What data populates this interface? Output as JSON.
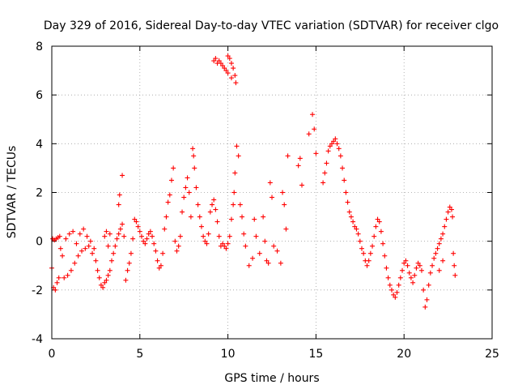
{
  "chart_data": {
    "type": "scatter",
    "title": "Day 329 of 2016, Sidereal Day-to-day VTEC variation (SDTVAR) for receiver clgo",
    "xlabel": "GPS time / hours",
    "ylabel": "SDTVAR / TECUs",
    "xlim": [
      0,
      25
    ],
    "ylim": [
      -4,
      8
    ],
    "xticks": [
      0,
      5,
      10,
      15,
      20,
      25
    ],
    "yticks": [
      -4,
      -2,
      0,
      2,
      4,
      6,
      8
    ],
    "grid": true,
    "marker": "+",
    "color": "#ff0000",
    "series": [
      {
        "name": "SDTVAR",
        "points": [
          [
            0.0,
            -1.1
          ],
          [
            0.05,
            0.1
          ],
          [
            0.1,
            -1.9
          ],
          [
            0.15,
            0.05
          ],
          [
            0.2,
            -2.0
          ],
          [
            0.25,
            0.1
          ],
          [
            0.3,
            -1.7
          ],
          [
            0.35,
            0.15
          ],
          [
            0.4,
            -1.5
          ],
          [
            0.45,
            0.2
          ],
          [
            0.5,
            -0.3
          ],
          [
            0.6,
            -0.6
          ],
          [
            0.7,
            -1.5
          ],
          [
            0.8,
            0.1
          ],
          [
            0.9,
            -1.4
          ],
          [
            1.0,
            0.3
          ],
          [
            1.1,
            -1.2
          ],
          [
            1.2,
            0.4
          ],
          [
            1.3,
            -0.9
          ],
          [
            1.4,
            -0.1
          ],
          [
            1.5,
            -0.6
          ],
          [
            1.6,
            0.3
          ],
          [
            1.7,
            -0.4
          ],
          [
            1.8,
            0.5
          ],
          [
            1.9,
            -0.3
          ],
          [
            2.0,
            0.2
          ],
          [
            2.1,
            -0.2
          ],
          [
            2.2,
            0.0
          ],
          [
            2.3,
            -0.5
          ],
          [
            2.4,
            -0.3
          ],
          [
            2.5,
            -0.8
          ],
          [
            2.6,
            -1.2
          ],
          [
            2.7,
            -1.5
          ],
          [
            2.8,
            -1.8
          ],
          [
            2.9,
            -1.9
          ],
          [
            3.0,
            -1.7
          ],
          [
            3.1,
            -1.6
          ],
          [
            3.2,
            -1.4
          ],
          [
            3.3,
            -1.2
          ],
          [
            3.4,
            -0.8
          ],
          [
            3.0,
            0.2
          ],
          [
            3.1,
            0.4
          ],
          [
            3.2,
            -0.2
          ],
          [
            3.3,
            0.3
          ],
          [
            3.5,
            -0.5
          ],
          [
            3.6,
            -0.2
          ],
          [
            3.7,
            0.1
          ],
          [
            3.8,
            0.3
          ],
          [
            3.9,
            0.5
          ],
          [
            4.0,
            0.7
          ],
          [
            3.8,
            1.5
          ],
          [
            3.85,
            1.9
          ],
          [
            4.0,
            2.7
          ],
          [
            4.1,
            0.2
          ],
          [
            4.2,
            -1.6
          ],
          [
            4.3,
            -1.2
          ],
          [
            4.4,
            -0.9
          ],
          [
            4.5,
            -0.5
          ],
          [
            4.6,
            0.1
          ],
          [
            4.7,
            0.9
          ],
          [
            4.8,
            0.8
          ],
          [
            4.9,
            0.6
          ],
          [
            5.0,
            0.4
          ],
          [
            5.1,
            0.2
          ],
          [
            5.2,
            0.0
          ],
          [
            5.3,
            -0.1
          ],
          [
            5.4,
            0.1
          ],
          [
            5.5,
            0.3
          ],
          [
            5.6,
            0.4
          ],
          [
            5.7,
            0.2
          ],
          [
            5.8,
            -0.1
          ],
          [
            5.9,
            -0.4
          ],
          [
            6.0,
            -0.8
          ],
          [
            6.1,
            -1.1
          ],
          [
            6.2,
            -1.0
          ],
          [
            6.3,
            -0.5
          ],
          [
            6.4,
            0.5
          ],
          [
            6.5,
            1.0
          ],
          [
            6.6,
            1.6
          ],
          [
            6.7,
            1.9
          ],
          [
            6.8,
            2.5
          ],
          [
            6.9,
            3.0
          ],
          [
            7.0,
            0.0
          ],
          [
            7.1,
            -0.4
          ],
          [
            7.2,
            -0.2
          ],
          [
            7.3,
            0.2
          ],
          [
            7.4,
            1.2
          ],
          [
            7.5,
            1.8
          ],
          [
            7.6,
            2.2
          ],
          [
            7.7,
            2.6
          ],
          [
            7.8,
            2.0
          ],
          [
            7.9,
            1.0
          ],
          [
            8.0,
            3.8
          ],
          [
            8.05,
            3.5
          ],
          [
            8.1,
            3.0
          ],
          [
            8.2,
            2.2
          ],
          [
            8.3,
            1.5
          ],
          [
            8.4,
            1.0
          ],
          [
            8.5,
            0.6
          ],
          [
            8.6,
            0.2
          ],
          [
            8.7,
            0.0
          ],
          [
            8.8,
            -0.1
          ],
          [
            8.9,
            0.3
          ],
          [
            9.0,
            1.2
          ],
          [
            9.1,
            1.5
          ],
          [
            9.2,
            1.7
          ],
          [
            9.3,
            1.3
          ],
          [
            9.4,
            0.8
          ],
          [
            9.5,
            0.2
          ],
          [
            9.6,
            -0.2
          ],
          [
            9.2,
            7.4
          ],
          [
            9.3,
            7.5
          ],
          [
            9.4,
            7.3
          ],
          [
            9.5,
            7.4
          ],
          [
            9.6,
            7.3
          ],
          [
            9.7,
            7.2
          ],
          [
            9.8,
            7.1
          ],
          [
            9.9,
            7.0
          ],
          [
            10.0,
            7.6
          ],
          [
            10.1,
            7.5
          ],
          [
            10.2,
            7.3
          ],
          [
            10.3,
            7.1
          ],
          [
            10.4,
            6.8
          ],
          [
            10.45,
            6.5
          ],
          [
            10.2,
            6.7
          ],
          [
            10.0,
            6.9
          ],
          [
            9.7,
            -0.1
          ],
          [
            9.8,
            -0.2
          ],
          [
            9.9,
            -0.3
          ],
          [
            10.0,
            -0.1
          ],
          [
            10.1,
            0.2
          ],
          [
            10.2,
            0.9
          ],
          [
            10.3,
            1.5
          ],
          [
            10.35,
            2.0
          ],
          [
            10.4,
            2.8
          ],
          [
            10.5,
            3.9
          ],
          [
            10.6,
            3.5
          ],
          [
            10.7,
            1.5
          ],
          [
            10.8,
            1.0
          ],
          [
            10.9,
            0.3
          ],
          [
            11.0,
            -0.2
          ],
          [
            11.2,
            -1.0
          ],
          [
            11.4,
            -0.7
          ],
          [
            11.5,
            0.9
          ],
          [
            11.6,
            0.2
          ],
          [
            11.8,
            -0.5
          ],
          [
            12.0,
            1.0
          ],
          [
            12.1,
            0.0
          ],
          [
            12.2,
            -0.8
          ],
          [
            12.3,
            -0.9
          ],
          [
            12.4,
            2.4
          ],
          [
            12.5,
            1.8
          ],
          [
            12.6,
            -0.2
          ],
          [
            12.8,
            -0.4
          ],
          [
            13.0,
            -0.9
          ],
          [
            13.1,
            2.0
          ],
          [
            13.2,
            1.5
          ],
          [
            13.3,
            0.5
          ],
          [
            13.4,
            3.5
          ],
          [
            14.0,
            3.1
          ],
          [
            14.1,
            3.4
          ],
          [
            14.2,
            2.3
          ],
          [
            14.6,
            4.4
          ],
          [
            14.8,
            5.2
          ],
          [
            14.9,
            4.6
          ],
          [
            15.0,
            3.6
          ],
          [
            15.4,
            2.4
          ],
          [
            15.5,
            2.8
          ],
          [
            15.6,
            3.2
          ],
          [
            15.7,
            3.7
          ],
          [
            15.8,
            3.9
          ],
          [
            15.9,
            4.0
          ],
          [
            16.0,
            4.1
          ],
          [
            16.1,
            4.2
          ],
          [
            16.2,
            4.0
          ],
          [
            16.3,
            3.8
          ],
          [
            16.4,
            3.5
          ],
          [
            16.5,
            3.0
          ],
          [
            16.6,
            2.5
          ],
          [
            16.7,
            2.0
          ],
          [
            16.8,
            1.6
          ],
          [
            16.9,
            1.2
          ],
          [
            17.0,
            1.0
          ],
          [
            17.1,
            0.8
          ],
          [
            17.2,
            0.6
          ],
          [
            17.3,
            0.5
          ],
          [
            17.4,
            0.3
          ],
          [
            17.5,
            0.0
          ],
          [
            17.6,
            -0.3
          ],
          [
            17.7,
            -0.5
          ],
          [
            17.8,
            -0.8
          ],
          [
            17.9,
            -1.0
          ],
          [
            18.0,
            -0.8
          ],
          [
            18.1,
            -0.5
          ],
          [
            18.2,
            -0.2
          ],
          [
            18.3,
            0.2
          ],
          [
            18.4,
            0.6
          ],
          [
            18.5,
            0.9
          ],
          [
            18.6,
            0.8
          ],
          [
            18.7,
            0.4
          ],
          [
            18.8,
            -0.1
          ],
          [
            18.9,
            -0.6
          ],
          [
            19.0,
            -1.1
          ],
          [
            19.1,
            -1.5
          ],
          [
            19.2,
            -1.8
          ],
          [
            19.3,
            -2.0
          ],
          [
            19.4,
            -2.2
          ],
          [
            19.5,
            -2.3
          ],
          [
            19.6,
            -2.1
          ],
          [
            19.7,
            -1.8
          ],
          [
            19.8,
            -1.5
          ],
          [
            19.9,
            -1.2
          ],
          [
            20.0,
            -0.9
          ],
          [
            20.1,
            -0.8
          ],
          [
            20.2,
            -1.0
          ],
          [
            20.3,
            -1.3
          ],
          [
            20.4,
            -1.5
          ],
          [
            20.5,
            -1.7
          ],
          [
            20.6,
            -1.4
          ],
          [
            20.7,
            -1.1
          ],
          [
            20.8,
            -0.9
          ],
          [
            20.9,
            -1.0
          ],
          [
            21.0,
            -1.2
          ],
          [
            21.1,
            -2.0
          ],
          [
            21.2,
            -2.7
          ],
          [
            21.3,
            -2.4
          ],
          [
            21.4,
            -1.8
          ],
          [
            21.5,
            -1.3
          ],
          [
            21.6,
            -1.0
          ],
          [
            21.7,
            -0.7
          ],
          [
            21.8,
            -0.5
          ],
          [
            21.9,
            -0.3
          ],
          [
            22.0,
            -0.1
          ],
          [
            22.1,
            0.1
          ],
          [
            22.2,
            0.3
          ],
          [
            22.3,
            0.6
          ],
          [
            22.4,
            0.9
          ],
          [
            22.5,
            1.2
          ],
          [
            22.6,
            1.4
          ],
          [
            22.7,
            1.3
          ],
          [
            22.75,
            1.0
          ],
          [
            22.8,
            -0.5
          ],
          [
            22.85,
            -1.0
          ],
          [
            22.9,
            -1.4
          ],
          [
            22.0,
            -1.2
          ],
          [
            22.2,
            -0.8
          ]
        ]
      }
    ]
  }
}
